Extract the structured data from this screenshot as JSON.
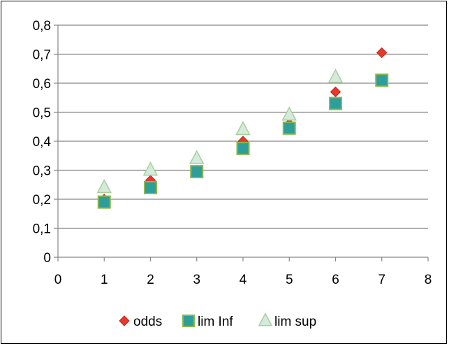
{
  "chart_data": {
    "type": "scatter",
    "title": "",
    "xlabel": "",
    "ylabel": "",
    "xlim": [
      0,
      8
    ],
    "ylim": [
      0,
      0.8
    ],
    "x_ticks": [
      0,
      1,
      2,
      3,
      4,
      5,
      6,
      7,
      8
    ],
    "y_ticks": [
      0,
      0.1,
      0.2,
      0.3,
      0.4,
      0.5,
      0.6,
      0.7,
      0.8
    ],
    "x_tick_labels": [
      "0",
      "1",
      "2",
      "3",
      "4",
      "5",
      "6",
      "7",
      "8"
    ],
    "y_tick_labels": [
      "0",
      "0,1",
      "0,2",
      "0,3",
      "0,4",
      "0,5",
      "0,6",
      "0,7",
      "0,8"
    ],
    "grid": "horizontal",
    "legend_position": "bottom",
    "series": [
      {
        "name": "odds",
        "marker": "diamond",
        "color": "#e8382a",
        "edge_color": "#b22a1e",
        "points": [
          [
            1,
            0.2
          ],
          [
            2,
            0.265
          ],
          [
            3,
            0.3
          ],
          [
            4,
            0.4
          ],
          [
            5,
            0.46
          ],
          [
            6,
            0.57
          ],
          [
            7,
            0.705
          ]
        ]
      },
      {
        "name": "lim Inf",
        "marker": "square",
        "color": "#2e9e9a",
        "edge_color": "#8cb84a",
        "points": [
          [
            1,
            0.19
          ],
          [
            2,
            0.24
          ],
          [
            3,
            0.295
          ],
          [
            4,
            0.375
          ],
          [
            5,
            0.445
          ],
          [
            6,
            0.53
          ],
          [
            7,
            0.61
          ]
        ]
      },
      {
        "name": "lim sup",
        "marker": "triangle",
        "color": "#d4eadc",
        "edge_color": "#a9cf9b",
        "points": [
          [
            1,
            0.24
          ],
          [
            2,
            0.3
          ],
          [
            3,
            0.34
          ],
          [
            4,
            0.44
          ],
          [
            5,
            0.49
          ],
          [
            6,
            0.62
          ]
        ]
      }
    ]
  }
}
